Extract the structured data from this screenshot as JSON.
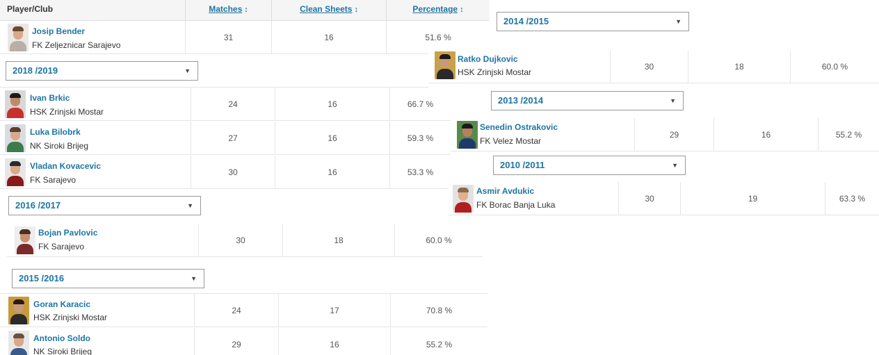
{
  "table": {
    "col_player": "Player/Club",
    "col_matches": "Matches",
    "col_clean_sheets": "Clean Sheets",
    "col_percentage": "Percentage"
  },
  "rows": {
    "josip": {
      "name": "Josip Bender",
      "club": "FK Zeljeznicar Sarajevo",
      "matches": "31",
      "clean_sheets": "16",
      "percentage": "51.6 %"
    },
    "ratko": {
      "name": "Ratko Dujkovic",
      "club": "HSK Zrinjski Mostar",
      "matches": "30",
      "clean_sheets": "18",
      "percentage": "60.0 %"
    },
    "ivan": {
      "name": "Ivan Brkic",
      "club": "HSK Zrinjski Mostar",
      "matches": "24",
      "clean_sheets": "16",
      "percentage": "66.7 %"
    },
    "luka": {
      "name": "Luka Bilobrk",
      "club": "NK Siroki Brijeg",
      "matches": "27",
      "clean_sheets": "16",
      "percentage": "59.3 %"
    },
    "vladan": {
      "name": "Vladan Kovacevic",
      "club": "FK Sarajevo",
      "matches": "30",
      "clean_sheets": "16",
      "percentage": "53.3 %"
    },
    "senedin": {
      "name": "Senedin Ostrakovic",
      "club": "FK Velez Mostar",
      "matches": "29",
      "clean_sheets": "16",
      "percentage": "55.2 %"
    },
    "asmir": {
      "name": "Asmir Avdukic",
      "club": "FK Borac Banja Luka",
      "matches": "30",
      "clean_sheets": "19",
      "percentage": "63.3 %"
    },
    "bojan": {
      "name": "Bojan Pavlovic",
      "club": "FK Sarajevo",
      "matches": "30",
      "clean_sheets": "18",
      "percentage": "60.0 %"
    },
    "goran": {
      "name": "Goran Karacic",
      "club": "HSK Zrinjski Mostar",
      "matches": "24",
      "clean_sheets": "17",
      "percentage": "70.8 %"
    },
    "antonio": {
      "name": "Antonio Soldo",
      "club": "NK Siroki Brijeg",
      "matches": "29",
      "clean_sheets": "16",
      "percentage": "55.2 %"
    }
  },
  "seasons": {
    "s2014": "2014 /2015",
    "s2018": "2018 /2019",
    "s2013": "2013 /2014",
    "s2010": "2010 /2011",
    "s2016": "2016 /2017",
    "s2015": "2015 /2016"
  },
  "icons": {
    "sort": "up-down-arrow-icon",
    "dropdown": "caret-down-icon",
    "avatar": "player-photo"
  },
  "colors": {
    "link": "#1d75a3",
    "header_bg": "#f5f5f5"
  }
}
